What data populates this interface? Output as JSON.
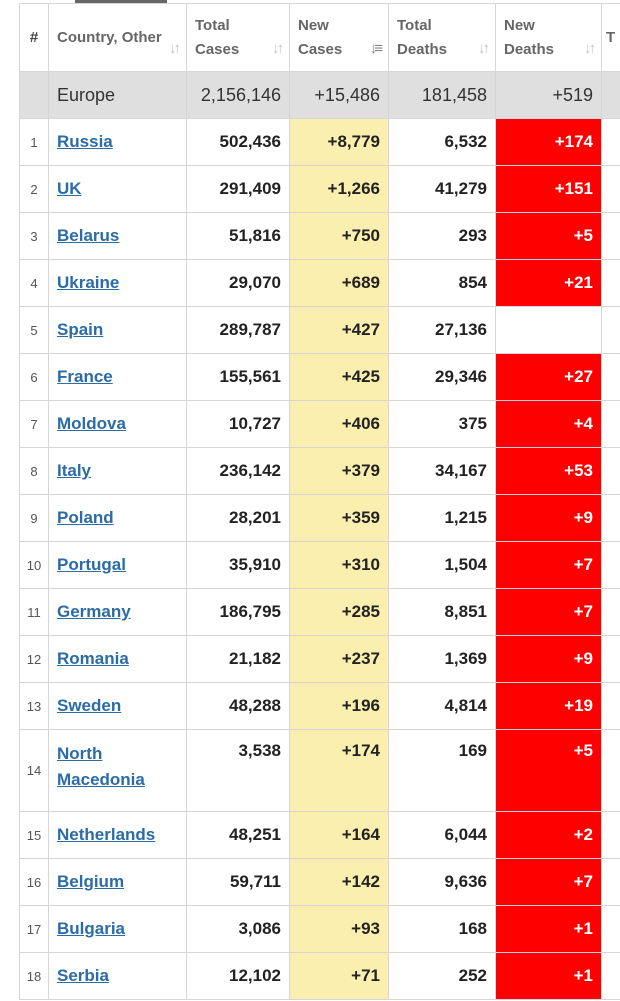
{
  "header": {
    "index": "#",
    "country": "Country, Other",
    "total_cases": "Total Cases",
    "new_cases": "New Cases",
    "total_deaths": "Total Deaths",
    "new_deaths": "New Deaths",
    "truncated": "T R"
  },
  "region": {
    "name": "Europe",
    "total_cases": "2,156,146",
    "new_cases": "+15,486",
    "total_deaths": "181,458",
    "new_deaths": "+519"
  },
  "rows": [
    {
      "idx": "1",
      "country": "Russia",
      "total_cases": "502,436",
      "new_cases": "+8,779",
      "total_deaths": "6,532",
      "new_deaths": "+174"
    },
    {
      "idx": "2",
      "country": "UK",
      "total_cases": "291,409",
      "new_cases": "+1,266",
      "total_deaths": "41,279",
      "new_deaths": "+151"
    },
    {
      "idx": "3",
      "country": "Belarus",
      "total_cases": "51,816",
      "new_cases": "+750",
      "total_deaths": "293",
      "new_deaths": "+5"
    },
    {
      "idx": "4",
      "country": "Ukraine",
      "total_cases": "29,070",
      "new_cases": "+689",
      "total_deaths": "854",
      "new_deaths": "+21"
    },
    {
      "idx": "5",
      "country": "Spain",
      "total_cases": "289,787",
      "new_cases": "+427",
      "total_deaths": "27,136",
      "new_deaths": ""
    },
    {
      "idx": "6",
      "country": "France",
      "total_cases": "155,561",
      "new_cases": "+425",
      "total_deaths": "29,346",
      "new_deaths": "+27"
    },
    {
      "idx": "7",
      "country": "Moldova",
      "total_cases": "10,727",
      "new_cases": "+406",
      "total_deaths": "375",
      "new_deaths": "+4"
    },
    {
      "idx": "8",
      "country": "Italy",
      "total_cases": "236,142",
      "new_cases": "+379",
      "total_deaths": "34,167",
      "new_deaths": "+53"
    },
    {
      "idx": "9",
      "country": "Poland",
      "total_cases": "28,201",
      "new_cases": "+359",
      "total_deaths": "1,215",
      "new_deaths": "+9"
    },
    {
      "idx": "10",
      "country": "Portugal",
      "total_cases": "35,910",
      "new_cases": "+310",
      "total_deaths": "1,504",
      "new_deaths": "+7"
    },
    {
      "idx": "11",
      "country": "Germany",
      "total_cases": "186,795",
      "new_cases": "+285",
      "total_deaths": "8,851",
      "new_deaths": "+7"
    },
    {
      "idx": "12",
      "country": "Romania",
      "total_cases": "21,182",
      "new_cases": "+237",
      "total_deaths": "1,369",
      "new_deaths": "+9"
    },
    {
      "idx": "13",
      "country": "Sweden",
      "total_cases": "48,288",
      "new_cases": "+196",
      "total_deaths": "4,814",
      "new_deaths": "+19"
    },
    {
      "idx": "14",
      "country": "North Macedonia",
      "total_cases": "3,538",
      "new_cases": "+174",
      "total_deaths": "169",
      "new_deaths": "+5"
    },
    {
      "idx": "15",
      "country": "Netherlands",
      "total_cases": "48,251",
      "new_cases": "+164",
      "total_deaths": "6,044",
      "new_deaths": "+2"
    },
    {
      "idx": "16",
      "country": "Belgium",
      "total_cases": "59,711",
      "new_cases": "+142",
      "total_deaths": "9,636",
      "new_deaths": "+7"
    },
    {
      "idx": "17",
      "country": "Bulgaria",
      "total_cases": "3,086",
      "new_cases": "+93",
      "total_deaths": "168",
      "new_deaths": "+1"
    },
    {
      "idx": "18",
      "country": "Serbia",
      "total_cases": "12,102",
      "new_cases": "+71",
      "total_deaths": "252",
      "new_deaths": "+1"
    }
  ],
  "colors": {
    "new_cases_bg": "#fbefb0",
    "new_deaths_bg": "#ff0000",
    "region_bg": "#dfdfdf",
    "link": "#2b6ba6"
  },
  "icons": {
    "sort_default": "sort-icon",
    "sort_active": "sort-desc-icon"
  }
}
